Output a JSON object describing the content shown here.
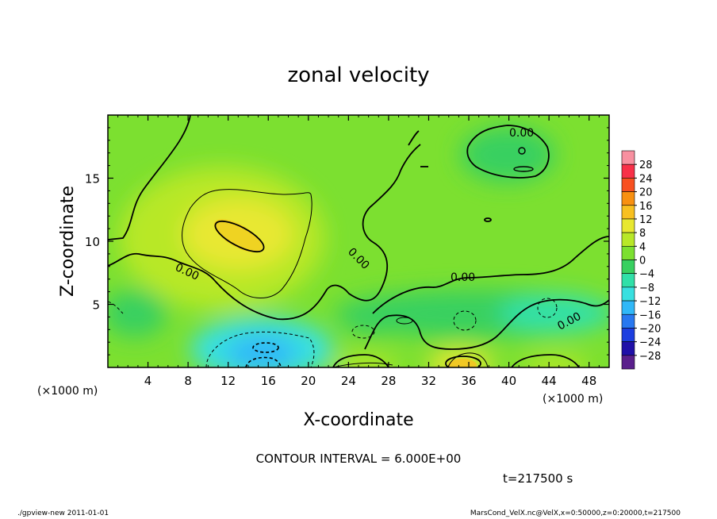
{
  "chart_data": {
    "type": "heatmap",
    "title": "zonal velocity",
    "xlabel": "X-coordinate",
    "ylabel": "Z-coordinate",
    "x_unit_left": "(×1000 m)",
    "x_unit_right": "(×1000 m)",
    "xlim": [
      0,
      50
    ],
    "ylim": [
      0,
      20
    ],
    "x_ticks": [
      4,
      8,
      12,
      16,
      20,
      24,
      28,
      32,
      36,
      40,
      44,
      48
    ],
    "x_tick_labels": [
      "4",
      "8",
      "12",
      "16",
      "20",
      "24",
      "28",
      "32",
      "36",
      "40",
      "44",
      "48"
    ],
    "y_ticks": [
      5,
      10,
      15
    ],
    "y_tick_labels": [
      "5",
      "10",
      "15"
    ],
    "colorbar": {
      "levels": [
        -32,
        -28,
        -24,
        -20,
        -16,
        -12,
        -8,
        -4,
        0,
        4,
        8,
        12,
        16,
        20,
        24,
        28,
        32
      ],
      "labels": [
        "28",
        "24",
        "20",
        "16",
        "12",
        "8",
        "4",
        "0",
        "−4",
        "−8",
        "−12",
        "−16",
        "−20",
        "−24",
        "−28"
      ],
      "colors": [
        "#5a1f8c",
        "#2010a8",
        "#1c3ee0",
        "#2878f0",
        "#30b8f8",
        "#38e0e0",
        "#30e0a8",
        "#38d060",
        "#7ce030",
        "#b8e828",
        "#e8e830",
        "#f8c020",
        "#f89010",
        "#f85020",
        "#f83048",
        "#f890a0"
      ]
    },
    "contour_interval_label": "CONTOUR INTERVAL = 6.000E+00",
    "contour_labels": [
      "0.00",
      "0.00",
      "0.00",
      "0.00",
      "0.00",
      "0.00"
    ],
    "anomalies": [
      {
        "x": 12.5,
        "z": 10.5,
        "value": 9,
        "kind": "max"
      },
      {
        "x": 35.5,
        "z": 0.5,
        "value": 8,
        "kind": "max"
      },
      {
        "x": 14.5,
        "z": 1.5,
        "value": -9,
        "kind": "min"
      },
      {
        "x": 40,
        "z": 17,
        "value": -4,
        "kind": "min"
      },
      {
        "x": 43,
        "z": 4.5,
        "value": -4,
        "kind": "min"
      }
    ],
    "time_label": "t=217500 s"
  },
  "footer": {
    "left": "./gpview-new  2011-01-01",
    "right": "MarsCond_VelX.nc@VelX,x=0:50000,z=0:20000,t=217500"
  }
}
